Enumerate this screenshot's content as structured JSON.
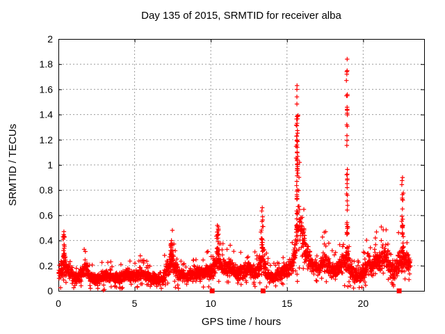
{
  "chart_data": {
    "type": "scatter",
    "title": "Day 135 of 2015, SRMTID for receiver alba",
    "xlabel": "GPS time / hours",
    "ylabel": "SRMTID / TECUs",
    "xlim": [
      0,
      24
    ],
    "ylim": [
      0,
      2
    ],
    "xticks": [
      0,
      5,
      10,
      15,
      20
    ],
    "yticks": [
      0,
      0.2,
      0.4,
      0.6,
      0.8,
      1,
      1.2,
      1.4,
      1.6,
      1.8,
      2
    ],
    "grid": "dotted",
    "grid_color": "#9b9b9b",
    "marker": "plus",
    "marker_color": "#ff0000",
    "x_start": 0.02,
    "x_end": 23.1,
    "points_per_hour": 120,
    "seed": 11,
    "series_envelope": [
      [
        0.0,
        0.13,
        0.07
      ],
      [
        0.2,
        0.17,
        0.09
      ],
      [
        0.35,
        0.24,
        0.14
      ],
      [
        0.55,
        0.18,
        0.08
      ],
      [
        0.85,
        0.15,
        0.07
      ],
      [
        1.15,
        0.1,
        0.05
      ],
      [
        1.45,
        0.12,
        0.06
      ],
      [
        1.75,
        0.19,
        0.08
      ],
      [
        2.05,
        0.11,
        0.05
      ],
      [
        2.45,
        0.09,
        0.05
      ],
      [
        2.85,
        0.11,
        0.05
      ],
      [
        3.25,
        0.12,
        0.06
      ],
      [
        3.7,
        0.11,
        0.05
      ],
      [
        4.1,
        0.1,
        0.05
      ],
      [
        4.5,
        0.13,
        0.06
      ],
      [
        4.9,
        0.11,
        0.05
      ],
      [
        5.35,
        0.14,
        0.06
      ],
      [
        5.8,
        0.12,
        0.05
      ],
      [
        6.2,
        0.1,
        0.05
      ],
      [
        6.55,
        0.08,
        0.04
      ],
      [
        6.9,
        0.1,
        0.05
      ],
      [
        7.15,
        0.17,
        0.09
      ],
      [
        7.4,
        0.25,
        0.11
      ],
      [
        7.65,
        0.17,
        0.08
      ],
      [
        7.95,
        0.12,
        0.06
      ],
      [
        8.4,
        0.12,
        0.05
      ],
      [
        8.9,
        0.13,
        0.06
      ],
      [
        9.35,
        0.14,
        0.06
      ],
      [
        9.75,
        0.15,
        0.07
      ],
      [
        10.1,
        0.15,
        0.07
      ],
      [
        10.4,
        0.26,
        0.13
      ],
      [
        10.7,
        0.19,
        0.08
      ],
      [
        11.05,
        0.17,
        0.08
      ],
      [
        11.35,
        0.2,
        0.09
      ],
      [
        11.7,
        0.14,
        0.07
      ],
      [
        12.1,
        0.15,
        0.07
      ],
      [
        12.45,
        0.2,
        0.09
      ],
      [
        12.8,
        0.14,
        0.07
      ],
      [
        13.15,
        0.18,
        0.09
      ],
      [
        13.4,
        0.27,
        0.13
      ],
      [
        13.65,
        0.13,
        0.07
      ],
      [
        14.05,
        0.11,
        0.05
      ],
      [
        14.5,
        0.13,
        0.06
      ],
      [
        14.95,
        0.16,
        0.07
      ],
      [
        15.3,
        0.2,
        0.08
      ],
      [
        15.55,
        0.3,
        0.13
      ],
      [
        15.75,
        0.55,
        0.3
      ],
      [
        15.95,
        0.48,
        0.25
      ],
      [
        16.2,
        0.33,
        0.13
      ],
      [
        16.5,
        0.24,
        0.09
      ],
      [
        16.8,
        0.19,
        0.08
      ],
      [
        17.1,
        0.17,
        0.07
      ],
      [
        17.4,
        0.23,
        0.11
      ],
      [
        17.6,
        0.24,
        0.11
      ],
      [
        17.85,
        0.16,
        0.07
      ],
      [
        18.2,
        0.15,
        0.07
      ],
      [
        18.55,
        0.2,
        0.09
      ],
      [
        18.85,
        0.24,
        0.11
      ],
      [
        19.05,
        0.2,
        0.1
      ],
      [
        19.35,
        0.12,
        0.06
      ],
      [
        19.7,
        0.11,
        0.06
      ],
      [
        20.05,
        0.15,
        0.08
      ],
      [
        20.3,
        0.23,
        0.11
      ],
      [
        20.6,
        0.19,
        0.09
      ],
      [
        20.95,
        0.24,
        0.11
      ],
      [
        21.25,
        0.27,
        0.12
      ],
      [
        21.55,
        0.27,
        0.12
      ],
      [
        21.85,
        0.16,
        0.08
      ],
      [
        22.15,
        0.18,
        0.09
      ],
      [
        22.45,
        0.24,
        0.11
      ],
      [
        22.7,
        0.27,
        0.12
      ],
      [
        22.9,
        0.23,
        0.09
      ],
      [
        23.1,
        0.2,
        0.08
      ]
    ],
    "spikes": [
      {
        "x": 0.36,
        "peak": 0.47,
        "width": 0.07,
        "n": 14
      },
      {
        "x": 7.42,
        "peak": 0.4,
        "width": 0.1,
        "n": 14
      },
      {
        "x": 10.43,
        "peak": 0.52,
        "width": 0.08,
        "n": 16
      },
      {
        "x": 13.38,
        "peak": 0.66,
        "width": 0.07,
        "n": 20
      },
      {
        "x": 15.66,
        "peak": 1.63,
        "width": 0.07,
        "n": 55
      },
      {
        "x": 18.95,
        "peak": 1.84,
        "width": 0.06,
        "n": 48
      },
      {
        "x": 22.58,
        "peak": 0.9,
        "width": 0.06,
        "n": 26
      }
    ],
    "near_zero_outliers": [
      [
        2.95,
        0.005
      ],
      [
        3.03,
        0.01
      ]
    ],
    "event_squares_x": [
      10.09,
      13.43,
      22.36
    ],
    "event_square_color": "#ff0000"
  }
}
